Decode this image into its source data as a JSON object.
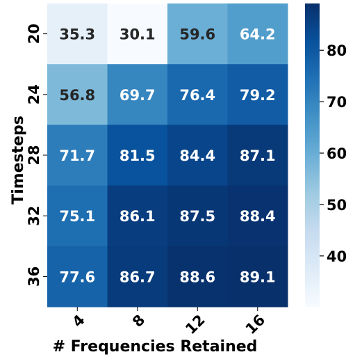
{
  "chart_data": {
    "type": "heatmap",
    "title": "",
    "xlabel": "# Frequencies Retained",
    "ylabel": "Timesteps",
    "x_categories": [
      "4",
      "8",
      "12",
      "16"
    ],
    "y_categories": [
      "20",
      "24",
      "28",
      "32",
      "36"
    ],
    "values": [
      [
        35.3,
        30.1,
        59.6,
        64.2
      ],
      [
        56.8,
        69.7,
        76.4,
        79.2
      ],
      [
        71.7,
        81.5,
        84.4,
        87.1
      ],
      [
        75.1,
        86.1,
        87.5,
        88.4
      ],
      [
        77.6,
        86.7,
        88.6,
        89.1
      ]
    ],
    "value_labels": [
      [
        "35.3",
        "30.1",
        "59.6",
        "64.2"
      ],
      [
        "56.8",
        "69.7",
        "76.4",
        "79.2"
      ],
      [
        "71.7",
        "81.5",
        "84.4",
        "87.1"
      ],
      [
        "75.1",
        "86.1",
        "87.5",
        "88.4"
      ],
      [
        "77.6",
        "86.7",
        "88.6",
        "89.1"
      ]
    ],
    "colormap": "Blues",
    "colorbar": {
      "range": [
        30.1,
        89.1
      ],
      "ticks": [
        40,
        50,
        60,
        70,
        80
      ],
      "tick_labels": [
        "40",
        "50",
        "60",
        "70",
        "80"
      ]
    },
    "text_colors": {
      "dark": "#262626",
      "light": "#ffffff"
    }
  }
}
